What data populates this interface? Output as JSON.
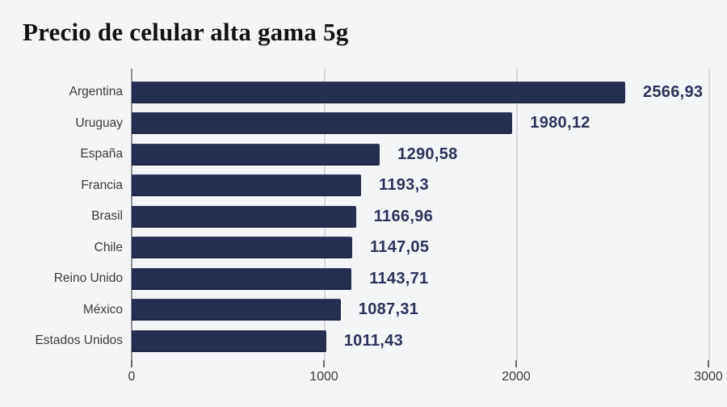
{
  "chart_data": {
    "type": "bar",
    "orientation": "horizontal",
    "title": "Precio de celular alta gama 5g",
    "categories": [
      "Argentina",
      "Uruguay",
      "España",
      "Francia",
      "Brasil",
      "Chile",
      "Reino Unido",
      "México",
      "Estados Unidos"
    ],
    "values": [
      2566.93,
      1980.12,
      1290.58,
      1193.3,
      1166.96,
      1147.05,
      1143.71,
      1087.31,
      1011.43
    ],
    "value_labels": [
      "2566,93",
      "1980,12",
      "1290,58",
      "1193,3",
      "1166,96",
      "1147,05",
      "1143,71",
      "1087,31",
      "1011,43"
    ],
    "x_ticks": [
      "0",
      "1000",
      "2000",
      "3000"
    ],
    "x_tick_values": [
      0,
      1000,
      2000,
      3000
    ],
    "xlim": [
      0,
      3000
    ],
    "grid": true,
    "legend": "none",
    "colors": {
      "bar": "#262e52",
      "value_label": "#2b3359",
      "category_label": "#3b3b3b",
      "gridline": "#d9d9dc",
      "axis_line": "#8f8f92",
      "background": "#f4f5f7",
      "title": "#121212"
    }
  }
}
